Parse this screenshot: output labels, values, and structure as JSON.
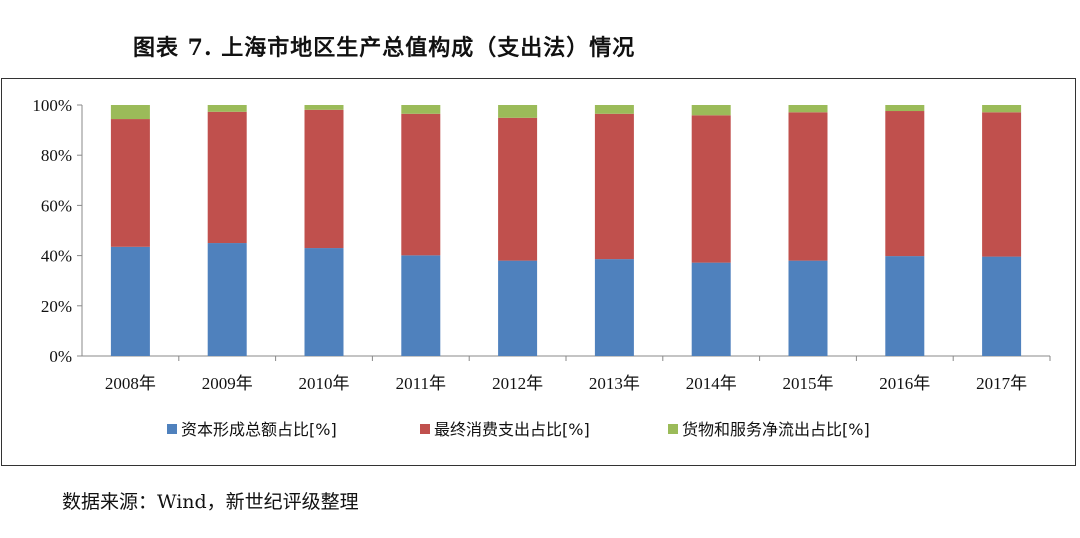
{
  "title": "图表 7. 上海市地区生产总值构成（支出法）情况",
  "source": "数据来源：Wind，新世纪评级整理",
  "chart_data": {
    "type": "bar",
    "stacked": true,
    "percent": true,
    "categories": [
      "2008年",
      "2009年",
      "2010年",
      "2011年",
      "2012年",
      "2013年",
      "2014年",
      "2015年",
      "2016年",
      "2017年"
    ],
    "ylim": [
      0,
      100
    ],
    "yticks": [
      "0%",
      "20%",
      "40%",
      "60%",
      "80%",
      "100%"
    ],
    "grid": false,
    "legend": "bottom",
    "series": [
      {
        "name": "资本形成总额占比[%]",
        "color": "#4F81BD",
        "values": [
          43.5,
          45.0,
          43.0,
          40.1,
          38.0,
          38.6,
          37.2,
          38.0,
          39.8,
          39.6
        ]
      },
      {
        "name": "最终消费支出占比[%]",
        "color": "#C0504D",
        "values": [
          50.9,
          52.3,
          55.1,
          56.4,
          56.9,
          57.9,
          58.7,
          59.1,
          57.8,
          57.5
        ]
      },
      {
        "name": "货物和服务净流出占比[%]",
        "color": "#9BBB59",
        "values": [
          5.6,
          2.7,
          1.9,
          3.5,
          5.1,
          3.5,
          4.1,
          2.9,
          2.4,
          2.9
        ]
      }
    ]
  }
}
